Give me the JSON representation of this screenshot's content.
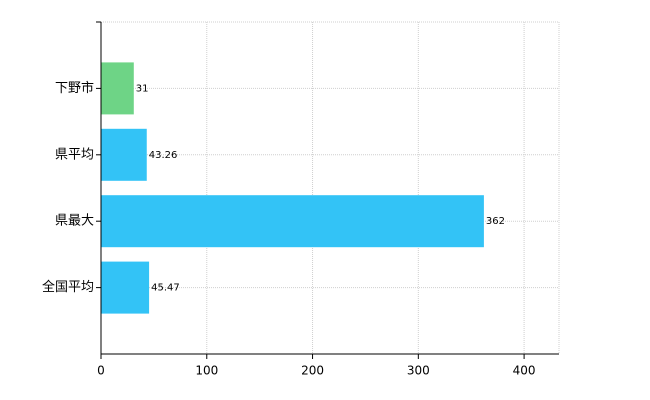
{
  "chart_data": {
    "type": "bar",
    "orientation": "horizontal",
    "categories": [
      "下野市",
      "県平均",
      "県最大",
      "全国平均"
    ],
    "values": [
      31,
      43.26,
      362,
      45.47
    ],
    "colors": [
      "#6ed486",
      "#33c3f6",
      "#33c3f6",
      "#33c3f6"
    ],
    "xlim": [
      0,
      433
    ],
    "xticks": [
      0,
      100,
      200,
      300,
      400
    ],
    "grid": true
  }
}
